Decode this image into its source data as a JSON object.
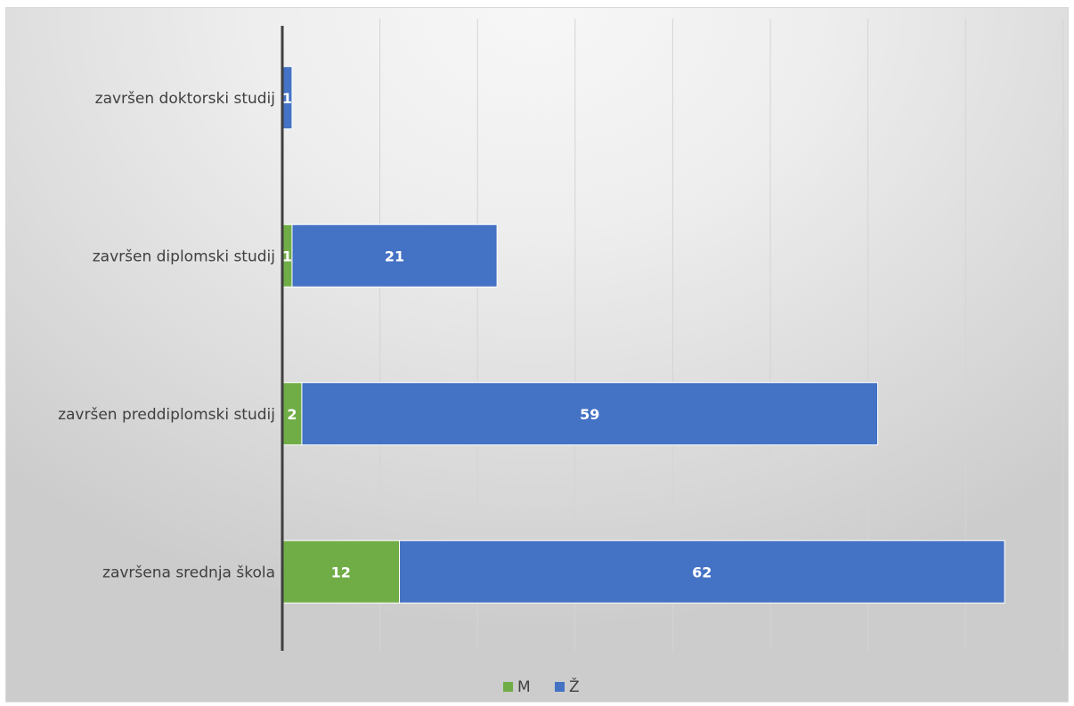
{
  "chart_data": {
    "type": "bar",
    "orientation": "horizontal",
    "stacked": true,
    "categories": [
      "završena srednja škola",
      "završen preddiplomski studij",
      "završen diplomski studij",
      "završen doktorski studij"
    ],
    "series": [
      {
        "name": "M",
        "color": "#70ad47",
        "values": [
          12,
          2,
          1,
          0
        ]
      },
      {
        "name": "Ž",
        "color": "#4472c4",
        "values": [
          62,
          59,
          21,
          1
        ]
      }
    ],
    "data_labels": [
      [
        "12",
        "2",
        "1",
        "0"
      ],
      [
        "62",
        "59",
        "21",
        "1"
      ]
    ],
    "xlim": [
      0,
      80
    ],
    "grid": true,
    "legend_position": "bottom",
    "title": "",
    "xlabel": "",
    "ylabel": ""
  }
}
